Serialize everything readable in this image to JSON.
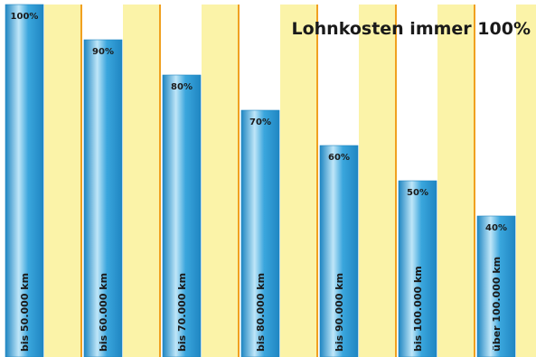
{
  "chart_data": {
    "type": "bar",
    "title": "Lohnkosten immer 100%",
    "categories": [
      "bis 50.000 km",
      "bis 60.000 km",
      "bis 70.000 km",
      "bis 80.000 km",
      "bis 90.000 km",
      "bis 100.000 km",
      "über 100.000 km"
    ],
    "series": [
      {
        "values": [
          100,
          90,
          80,
          70,
          60,
          50,
          40
        ]
      },
      {
        "values": [
          100,
          100,
          100,
          100,
          100,
          100,
          100
        ]
      }
    ],
    "value_labels": [
      "100%",
      "90%",
      "80%",
      "70%",
      "60%",
      "50%",
      "40%"
    ],
    "ylim": [
      0,
      100
    ],
    "xlabel": "",
    "ylabel": "",
    "grid": false,
    "colors": {
      "blue_bar": "#3aa6dd",
      "blue_light": "#bfe6f8",
      "blue_dark": "#1f86c2",
      "yellow_bar": "#fbf3a8",
      "yellow_edge": "#f0a020",
      "label_text": "#1a1a1a"
    }
  }
}
